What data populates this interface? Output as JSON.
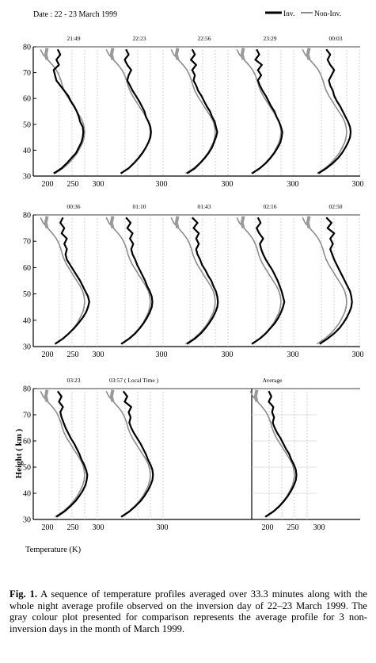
{
  "header": {
    "date": "Date : 22 - 23 March 1999"
  },
  "legend": {
    "inv": "Inv.",
    "noninv": "Non-Inv."
  },
  "colors": {
    "inv": "#000000",
    "noninv": "#8c8c8c",
    "grid": "#c4c4c4"
  },
  "chart_data": {
    "type": "line",
    "xlabel": "Temperature (K)",
    "ylabel": "Height ( km )",
    "ylim": [
      30,
      80
    ],
    "y_ticks": [
      "30",
      "40",
      "50",
      "60",
      "70",
      "80"
    ],
    "x_ticks": [
      "200",
      "250",
      "300"
    ],
    "grid": "vertical dashed",
    "series_names": [
      "Inv.",
      "Non-Inv."
    ],
    "heights_km": [
      31,
      33,
      35,
      37,
      39,
      41,
      43,
      45,
      47,
      49,
      51,
      53,
      55,
      57,
      59,
      61,
      63,
      65,
      67,
      69,
      71,
      73,
      75,
      77,
      79
    ],
    "noninv_profile_K": [
      220,
      232,
      241,
      248,
      254,
      258,
      262,
      264,
      265,
      264,
      262,
      258,
      253,
      248,
      243,
      238,
      234,
      231,
      229,
      226,
      222,
      216,
      209,
      202,
      198
    ],
    "profiles": [
      {
        "label": "21:49",
        "inv_K": [
          218,
          230,
          238,
          245,
          252,
          256,
          260,
          262,
          263,
          262,
          258,
          256,
          253,
          249,
          244,
          240,
          234,
          228,
          222,
          220,
          218,
          226,
          222,
          228,
          224
        ]
      },
      {
        "label": "22:23",
        "inv_K": [
          220,
          232,
          240,
          247,
          253,
          258,
          262,
          265,
          266,
          265,
          262,
          258,
          256,
          252,
          248,
          243,
          238,
          234,
          230,
          232,
          236,
          230,
          226,
          232,
          228
        ]
      },
      {
        "label": "22:56",
        "inv_K": [
          222,
          234,
          242,
          249,
          255,
          260,
          263,
          266,
          268,
          266,
          264,
          260,
          257,
          252,
          248,
          244,
          239,
          236,
          232,
          234,
          230,
          236,
          228,
          234,
          230
        ]
      },
      {
        "label": "23:29",
        "inv_K": [
          221,
          233,
          242,
          249,
          255,
          260,
          264,
          266,
          267,
          265,
          262,
          258,
          255,
          250,
          246,
          242,
          237,
          233,
          230,
          235,
          230,
          236,
          226,
          232,
          228
        ]
      },
      {
        "label": "00:03",
        "inv_K": [
          222,
          234,
          244,
          252,
          258,
          263,
          267,
          270,
          271,
          270,
          267,
          263,
          259,
          255,
          250,
          246,
          244,
          240,
          238,
          242,
          246,
          240,
          236,
          240,
          234
        ]
      },
      {
        "label": "00:36",
        "inv_K": [
          220,
          232,
          241,
          249,
          256,
          262,
          267,
          270,
          272,
          270,
          266,
          262,
          258,
          253,
          248,
          243,
          238,
          236,
          238,
          234,
          238,
          230,
          234,
          228,
          232
        ]
      },
      {
        "label": "01:10",
        "inv_K": [
          221,
          233,
          242,
          249,
          255,
          260,
          264,
          267,
          268,
          267,
          264,
          260,
          257,
          253,
          249,
          245,
          242,
          238,
          236,
          239,
          234,
          238,
          230,
          235,
          228
        ]
      },
      {
        "label": "01:43",
        "inv_K": [
          222,
          234,
          243,
          250,
          256,
          261,
          265,
          268,
          269,
          268,
          266,
          262,
          259,
          254,
          250,
          245,
          242,
          238,
          236,
          240,
          236,
          240,
          232,
          238,
          230
        ]
      },
      {
        "label": "02:16",
        "inv_K": [
          221,
          233,
          242,
          249,
          256,
          261,
          265,
          268,
          270,
          268,
          266,
          263,
          260,
          256,
          252,
          247,
          242,
          238,
          235,
          233,
          238,
          232,
          228,
          234,
          230
        ]
      },
      {
        "label": "02:50",
        "inv_K": [
          224,
          236,
          246,
          254,
          260,
          265,
          269,
          272,
          273,
          272,
          270,
          266,
          262,
          258,
          254,
          250,
          246,
          243,
          240,
          244,
          240,
          246,
          236,
          242,
          234
        ]
      },
      {
        "label": "03:23",
        "inv_K": [
          222,
          234,
          243,
          251,
          257,
          262,
          266,
          268,
          269,
          267,
          264,
          260,
          257,
          253,
          249,
          244,
          240,
          236,
          233,
          230,
          228,
          232,
          226,
          230,
          224
        ]
      },
      {
        "label": "03:57 ( Local Time )",
        "inv_K": [
          221,
          233,
          242,
          250,
          256,
          261,
          265,
          268,
          269,
          268,
          265,
          261,
          258,
          254,
          250,
          245,
          240,
          236,
          233,
          235,
          232,
          236,
          226,
          230,
          224
        ]
      },
      {
        "label": "Average",
        "inv_K": [
          221,
          233,
          242,
          249,
          255,
          260,
          264,
          267,
          268,
          267,
          264,
          260,
          257,
          252,
          248,
          244,
          239,
          235,
          232,
          234,
          231,
          233,
          226,
          230,
          226
        ]
      }
    ]
  },
  "caption": {
    "label": "Fig. 1.",
    "text": " A sequence of temperature profiles averaged over 33.3 minutes along with the whole night average profile observed on the inversion day of 22–23 March 1999. The gray colour plot presented for comparison represents the average profile for 3 non-inversion days in the month of March 1999."
  }
}
